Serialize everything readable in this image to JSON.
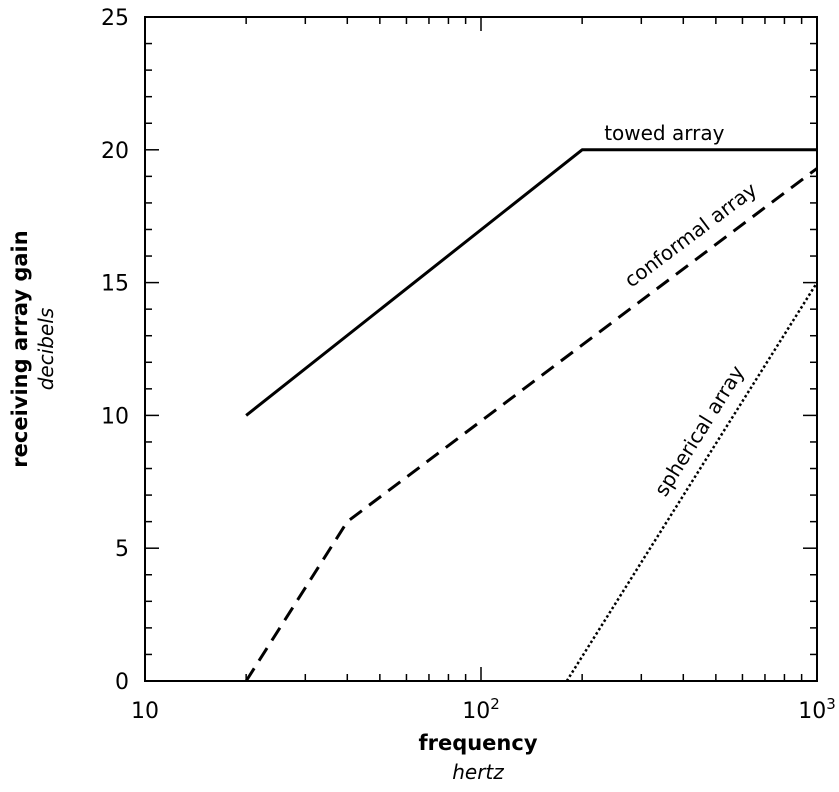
{
  "chart_data": {
    "type": "line",
    "xlabel": "frequency",
    "xunit": "hertz",
    "ylabel": "receiving array gain",
    "yunit": "decibels",
    "xscale": "log",
    "xlim": [
      10,
      1000
    ],
    "ylim": [
      0,
      25
    ],
    "x_ticks": [
      {
        "value": 10,
        "base": "10",
        "exp": ""
      },
      {
        "value": 100,
        "base": "10",
        "exp": "2"
      },
      {
        "value": 1000,
        "base": "10",
        "exp": "3"
      }
    ],
    "y_ticks": [
      "0",
      "5",
      "10",
      "15",
      "20",
      "25"
    ],
    "grid": false,
    "legend": "none",
    "series": [
      {
        "name": "towed array",
        "style": "solid",
        "points": [
          [
            20,
            10
          ],
          [
            200,
            20
          ],
          [
            1000,
            20
          ]
        ]
      },
      {
        "name": "conformal array",
        "style": "dashed",
        "points": [
          [
            20,
            0
          ],
          [
            40,
            6
          ],
          [
            1000,
            19.3
          ]
        ]
      },
      {
        "name": "spherical array",
        "style": "dotted",
        "points": [
          [
            180,
            0
          ],
          [
            1000,
            15
          ]
        ]
      }
    ]
  }
}
